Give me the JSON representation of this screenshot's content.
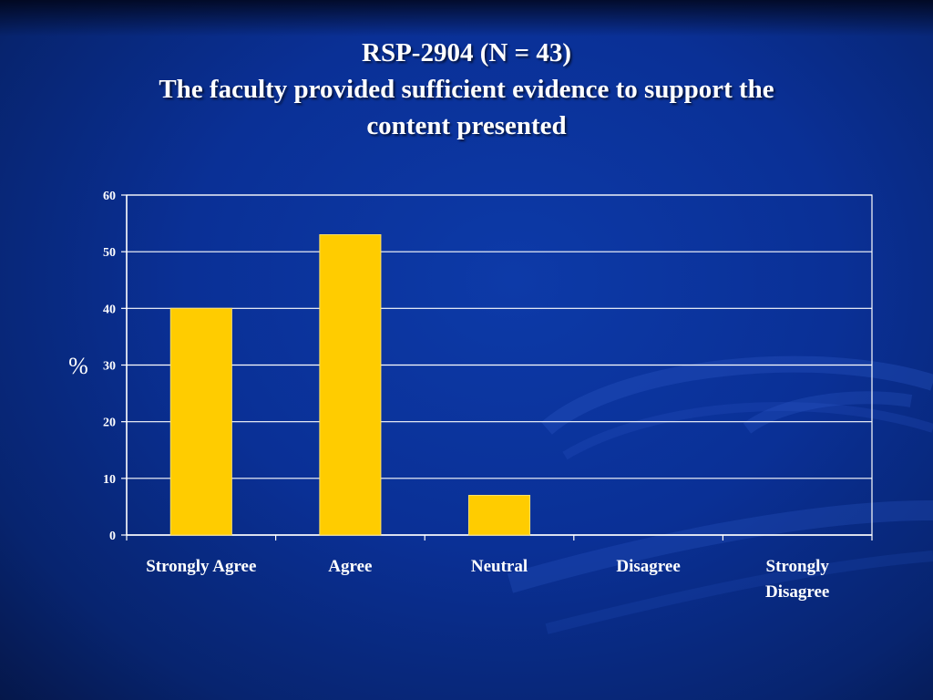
{
  "slide": {
    "title_line1": "RSP-2904 (N = 43)",
    "title_line2": "The faculty provided sufficient evidence to support the",
    "title_line3": "content presented"
  },
  "colors": {
    "bar": "#ffcc00",
    "bar_stroke": "#ffe066",
    "axis": "#ffffff",
    "grid": "#ffffff"
  },
  "chart_data": {
    "type": "bar",
    "categories": [
      [
        "Strongly Agree"
      ],
      [
        "Agree"
      ],
      [
        "Neutral"
      ],
      [
        "Disagree"
      ],
      [
        "Strongly",
        "Disagree"
      ]
    ],
    "values": [
      40,
      53,
      7,
      0,
      0
    ],
    "ylabel": "%",
    "xlabel": "",
    "ylim": [
      0,
      60
    ],
    "yticks": [
      0,
      10,
      20,
      30,
      40,
      50,
      60
    ],
    "grid": true,
    "legend": "none"
  }
}
